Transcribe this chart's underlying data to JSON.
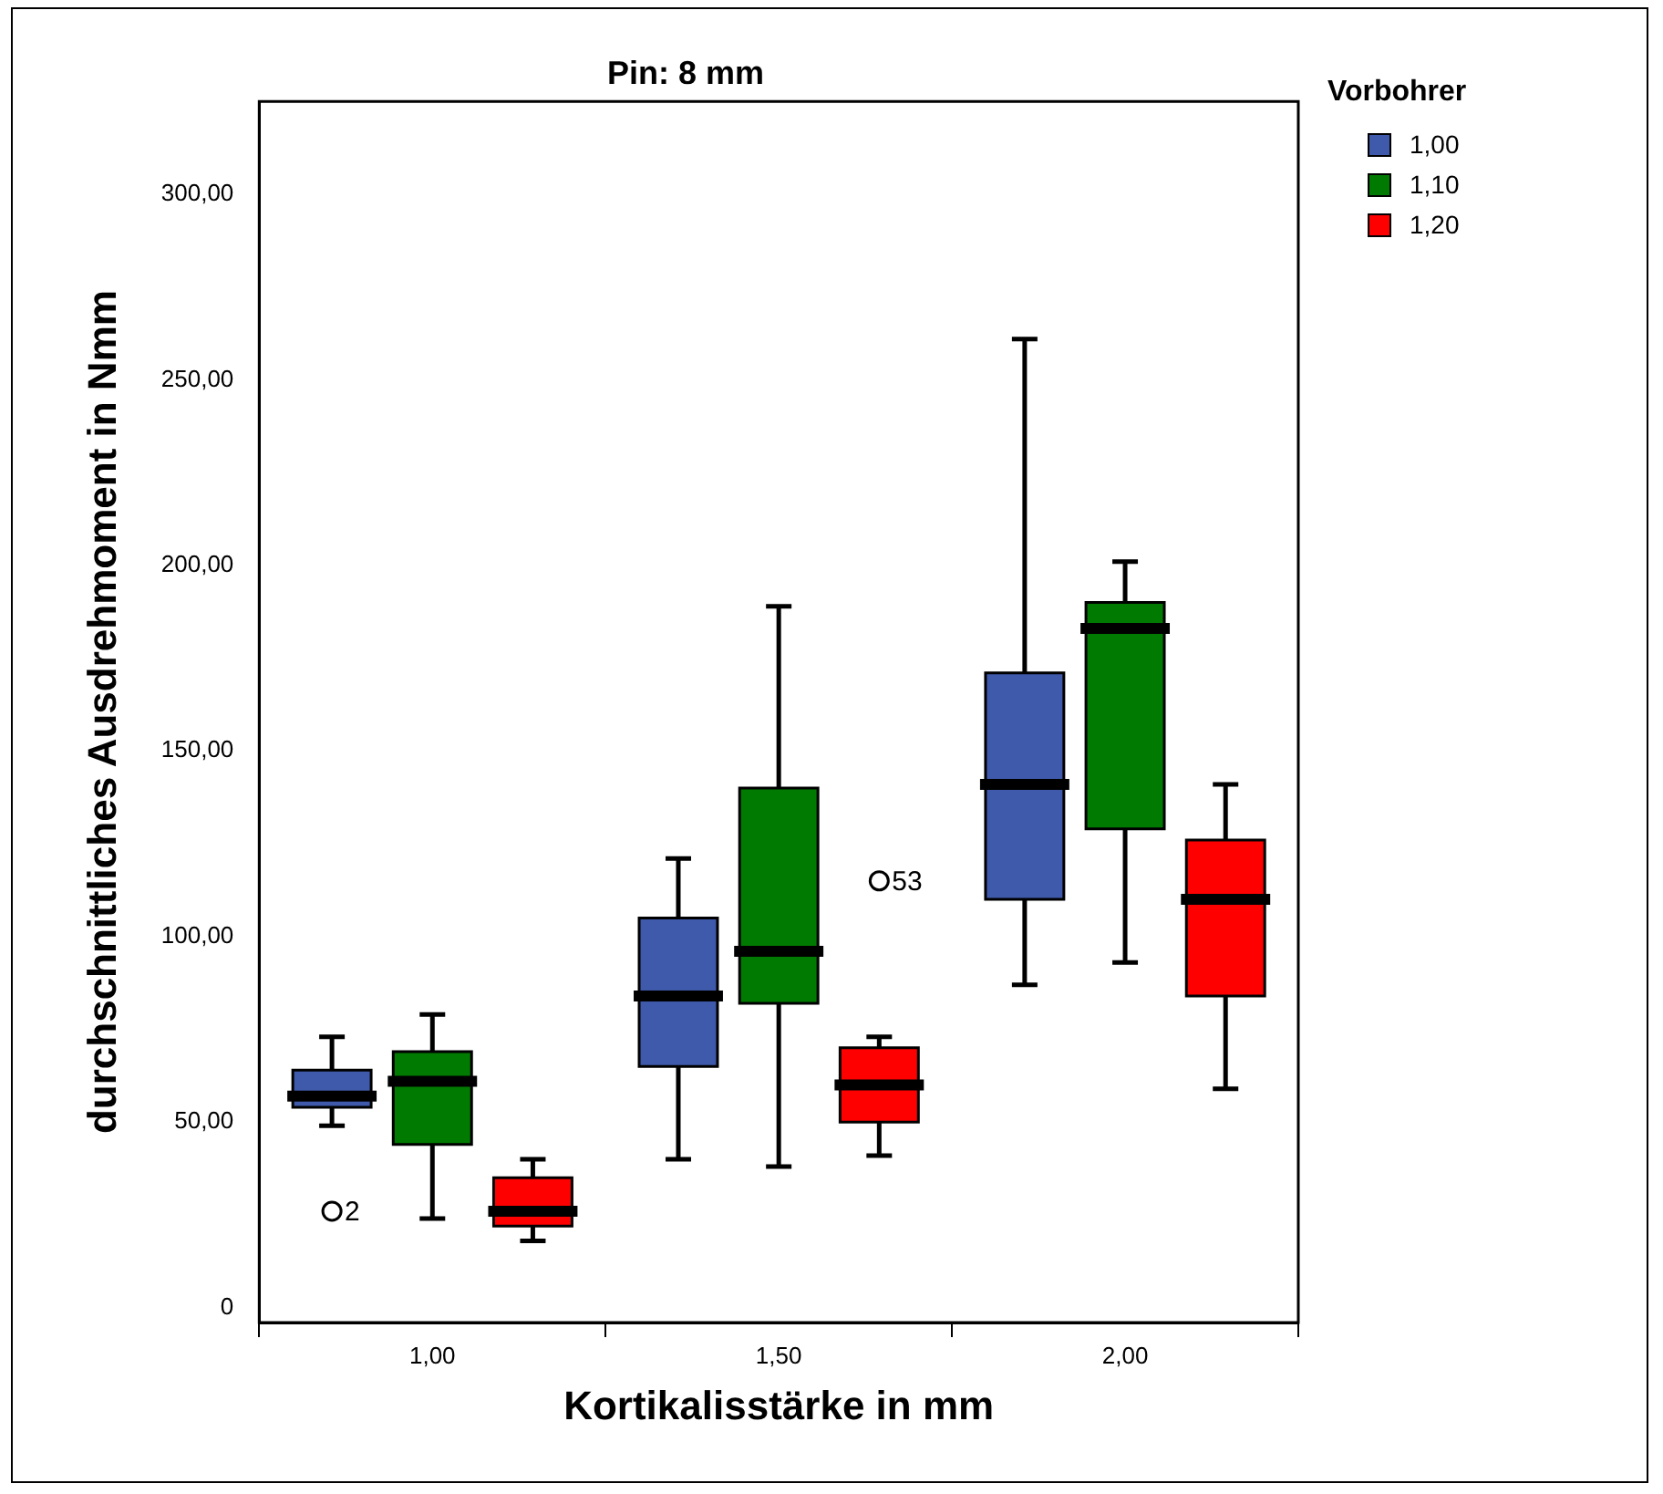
{
  "chart_data": {
    "type": "box",
    "title": "Pin: 8 mm",
    "xlabel": "Kortikalisstärke in mm",
    "ylabel": "durchschnittliches Ausdrehmoment in Nmm",
    "legend_title": "Vorbohrer",
    "legend": "right",
    "grid": false,
    "categories": [
      "1,00",
      "1,50",
      "2,00"
    ],
    "ylim": [
      -4,
      325
    ],
    "yticks": [
      {
        "value": 0,
        "label": "0"
      },
      {
        "value": 50,
        "label": "50,00"
      },
      {
        "value": 100,
        "label": "100,00"
      },
      {
        "value": 150,
        "label": "150,00"
      },
      {
        "value": 200,
        "label": "200,00"
      },
      {
        "value": 250,
        "label": "250,00"
      },
      {
        "value": 300,
        "label": "300,00"
      }
    ],
    "series": [
      {
        "name": "1,00",
        "color": "#3f5aaa",
        "boxes": [
          {
            "low": 49,
            "q1": 54,
            "median": 57,
            "q3": 64,
            "high": 73,
            "outliers": [
              26
            ]
          },
          {
            "low": 40,
            "q1": 65,
            "median": 84,
            "q3": 105,
            "high": 121
          },
          {
            "low": 87,
            "q1": 110,
            "median": 141,
            "q3": 171,
            "high": 261
          }
        ]
      },
      {
        "name": "1,10",
        "color": "#007a00",
        "boxes": [
          {
            "low": 24,
            "q1": 44,
            "median": 61,
            "q3": 69,
            "high": 79
          },
          {
            "low": 38,
            "q1": 82,
            "median": 96,
            "q3": 140,
            "high": 189
          },
          {
            "low": 93,
            "q1": 129,
            "median": 183,
            "q3": 190,
            "high": 201
          }
        ]
      },
      {
        "name": "1,20",
        "color": "#ff0000",
        "boxes": [
          {
            "low": 18,
            "q1": 22,
            "median": 26,
            "q3": 35,
            "high": 40
          },
          {
            "low": 41,
            "q1": 50,
            "median": 60,
            "q3": 70,
            "high": 73,
            "outliers": [
              115
            ]
          },
          {
            "low": 59,
            "q1": 84,
            "median": 110,
            "q3": 126,
            "high": 141
          }
        ]
      }
    ],
    "annotations": [
      {
        "text": "2",
        "x": "1,00",
        "y": 26
      },
      "53"
    ]
  }
}
